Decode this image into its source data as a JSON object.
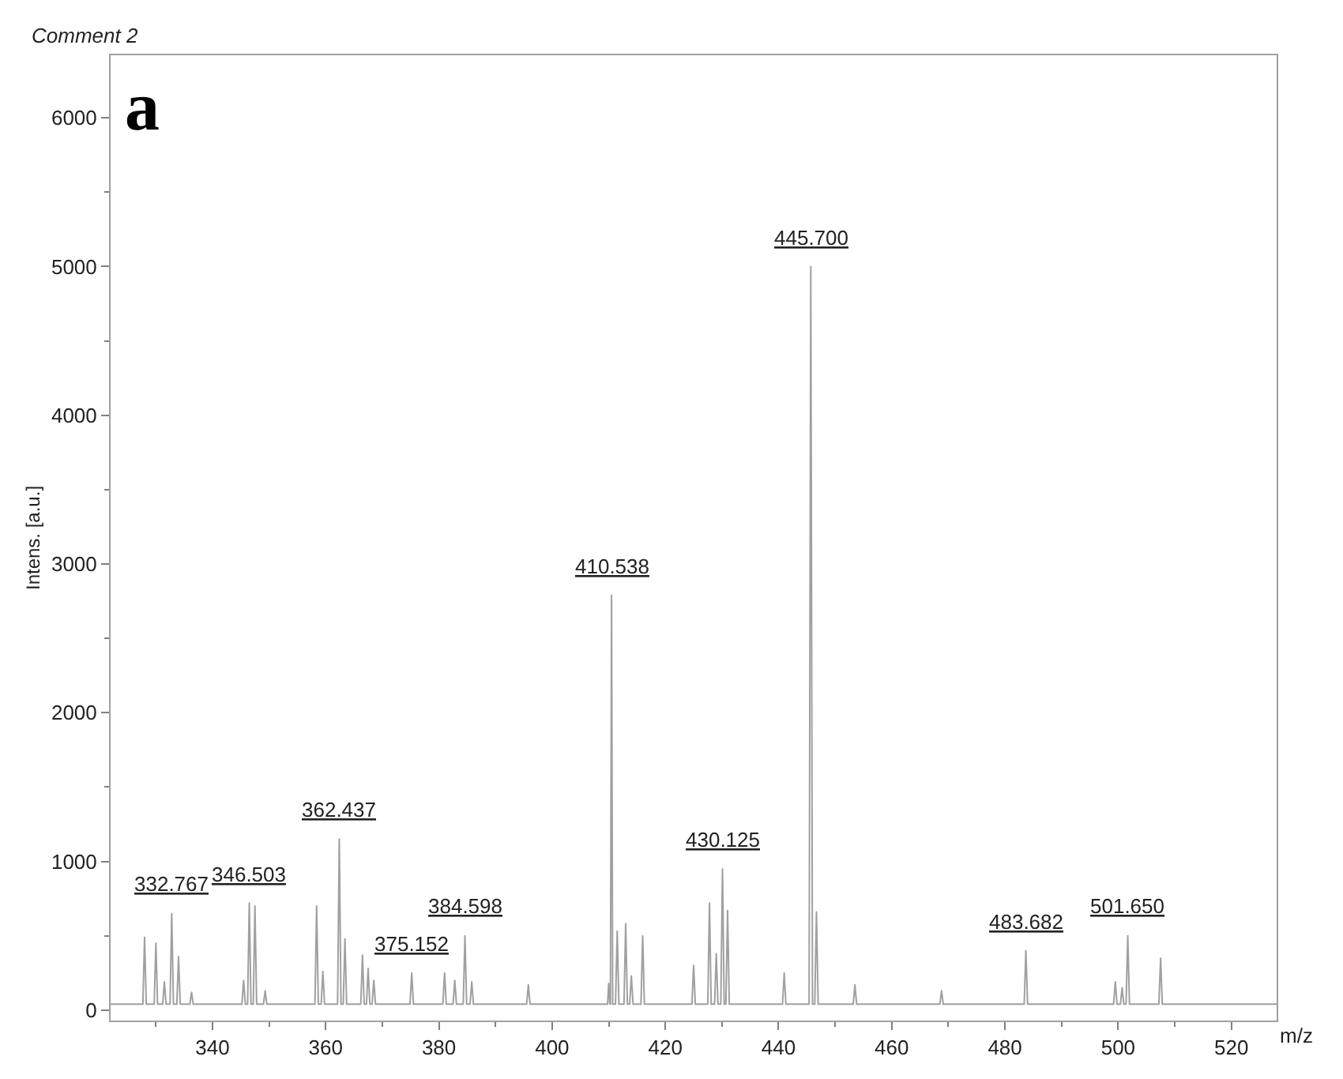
{
  "chart_data": {
    "type": "line",
    "xlabel": "m/z",
    "ylabel": "Intens. [a.u.]",
    "xlim": [
      322,
      528
    ],
    "ylim": [
      -70,
      6420
    ],
    "xticks": [
      340,
      360,
      380,
      400,
      420,
      440,
      460,
      480,
      500,
      520
    ],
    "yticks": [
      0,
      1000,
      2000,
      3000,
      4000,
      5000,
      6000
    ],
    "marker": "none",
    "line_style": "solid",
    "series": [
      {
        "color": "#a0a0a0",
        "x": [
          322,
          327.7,
          328,
          328.3,
          329.7,
          330,
          330.3,
          331.2,
          331.5,
          331.8,
          332.5,
          332.8,
          333.1,
          333.7,
          334,
          334.3,
          336,
          336.3,
          336.6,
          345.2,
          345.5,
          345.8,
          346.2,
          346.5,
          346.8,
          347.2,
          347.5,
          347.8,
          349,
          349.3,
          349.6,
          358.1,
          358.4,
          358.7,
          359.2,
          359.5,
          359.8,
          362.1,
          362.4,
          362.7,
          363.1,
          363.4,
          363.7,
          366.2,
          366.5,
          366.8,
          367.2,
          367.5,
          367.8,
          368.2,
          368.5,
          368.8,
          374.9,
          375.2,
          375.5,
          380.7,
          381,
          381.3,
          382.5,
          382.8,
          383.1,
          384.3,
          384.6,
          384.9,
          385.5,
          385.8,
          386.1,
          395.5,
          395.8,
          396.1,
          409.8,
          410,
          410.2,
          410.3,
          410.5,
          410.7,
          411.2,
          411.5,
          411.8,
          412.7,
          413,
          413.3,
          413.7,
          414,
          414.3,
          415.7,
          416,
          416.3,
          424.7,
          425,
          425.3,
          427.5,
          427.8,
          428.1,
          428.7,
          429,
          429.3,
          429.8,
          430.1,
          430.4,
          430.7,
          431,
          431.3,
          440.7,
          441,
          441.3,
          445.4,
          445.7,
          446,
          446.4,
          446.7,
          447,
          453.2,
          453.5,
          453.8,
          468.5,
          468.8,
          469.1,
          483.4,
          483.7,
          484,
          499.2,
          499.5,
          499.8,
          500.4,
          500.7,
          501,
          501.4,
          501.7,
          502,
          507.2,
          507.5,
          507.8,
          528
        ],
        "values": [
          40,
          40,
          490,
          40,
          40,
          450,
          40,
          40,
          190,
          40,
          40,
          650,
          40,
          40,
          360,
          40,
          40,
          120,
          40,
          40,
          200,
          40,
          40,
          720,
          40,
          40,
          700,
          40,
          40,
          130,
          40,
          40,
          700,
          40,
          40,
          260,
          40,
          40,
          1150,
          40,
          40,
          480,
          40,
          40,
          370,
          40,
          40,
          280,
          40,
          40,
          200,
          40,
          40,
          250,
          40,
          40,
          250,
          40,
          40,
          200,
          40,
          40,
          500,
          40,
          40,
          190,
          40,
          40,
          170,
          40,
          40,
          180,
          40,
          40,
          2790,
          40,
          40,
          530,
          40,
          40,
          580,
          40,
          40,
          230,
          40,
          40,
          500,
          40,
          40,
          300,
          40,
          40,
          720,
          40,
          40,
          380,
          40,
          40,
          950,
          40,
          40,
          670,
          40,
          40,
          250,
          40,
          40,
          5000,
          40,
          40,
          660,
          40,
          40,
          170,
          40,
          40,
          130,
          40,
          40,
          400,
          40,
          40,
          190,
          40,
          40,
          150,
          40,
          40,
          500,
          40,
          40,
          350,
          40,
          40
        ]
      }
    ],
    "annotations": [
      "Comment 2",
      "a",
      {
        "text": "332.767",
        "x": 332.8,
        "y": 650
      },
      {
        "text": "346.503",
        "x": 346.5,
        "y": 720
      },
      {
        "text": "362.437",
        "x": 362.4,
        "y": 1150
      },
      {
        "text": "375.152",
        "x": 375.2,
        "y": 250
      },
      {
        "text": "384.598",
        "x": 384.6,
        "y": 500
      },
      {
        "text": "410.538",
        "x": 410.5,
        "y": 2790
      },
      {
        "text": "430.125",
        "x": 430.1,
        "y": 950
      },
      {
        "text": "445.700",
        "x": 445.7,
        "y": 5000
      },
      {
        "text": "483.682",
        "x": 483.7,
        "y": 400
      },
      {
        "text": "501.650",
        "x": 501.7,
        "y": 500
      }
    ]
  }
}
